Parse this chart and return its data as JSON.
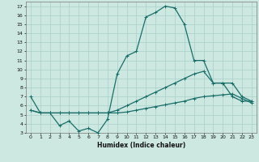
{
  "xlabel": "Humidex (Indice chaleur)",
  "background_color": "#cce8e0",
  "line_color": "#1a6e6a",
  "grid_color": "#aacfca",
  "xlim": [
    -0.5,
    23.5
  ],
  "ylim": [
    3,
    17.5
  ],
  "yticks": [
    3,
    4,
    5,
    6,
    7,
    8,
    9,
    10,
    11,
    12,
    13,
    14,
    15,
    16,
    17
  ],
  "xticks": [
    0,
    1,
    2,
    3,
    4,
    5,
    6,
    7,
    8,
    9,
    10,
    11,
    12,
    13,
    14,
    15,
    16,
    17,
    18,
    19,
    20,
    21,
    22,
    23
  ],
  "curve1_x": [
    0,
    1,
    2,
    3,
    4,
    5,
    6,
    7,
    8,
    9,
    10,
    11,
    12,
    13,
    14,
    15,
    16,
    17,
    18,
    19,
    20,
    21,
    22,
    23
  ],
  "curve1_y": [
    7.0,
    5.2,
    5.2,
    3.8,
    4.3,
    3.2,
    3.5,
    3.0,
    4.5,
    9.5,
    11.5,
    12.0,
    15.8,
    16.3,
    17.0,
    16.8,
    15.0,
    11.0,
    11.0,
    8.5,
    8.5,
    7.0,
    6.5,
    6.5
  ],
  "curve2_x": [
    0,
    1,
    2,
    3,
    4,
    5,
    6,
    7,
    8,
    9,
    10,
    11,
    12,
    13,
    14,
    15,
    16,
    17,
    18,
    19,
    20,
    21,
    22,
    23
  ],
  "curve2_y": [
    5.5,
    5.2,
    5.2,
    5.2,
    5.2,
    5.2,
    5.2,
    5.2,
    5.2,
    5.5,
    6.0,
    6.5,
    7.0,
    7.5,
    8.0,
    8.5,
    9.0,
    9.5,
    9.8,
    8.5,
    8.5,
    8.5,
    7.0,
    6.5
  ],
  "curve3_x": [
    0,
    1,
    2,
    3,
    4,
    5,
    6,
    7,
    8,
    9,
    10,
    11,
    12,
    13,
    14,
    15,
    16,
    17,
    18,
    19,
    20,
    21,
    22,
    23
  ],
  "curve3_y": [
    5.5,
    5.2,
    5.2,
    5.2,
    5.2,
    5.2,
    5.2,
    5.2,
    5.2,
    5.2,
    5.3,
    5.5,
    5.7,
    5.9,
    6.1,
    6.3,
    6.5,
    6.8,
    7.0,
    7.1,
    7.2,
    7.3,
    6.8,
    6.3
  ]
}
